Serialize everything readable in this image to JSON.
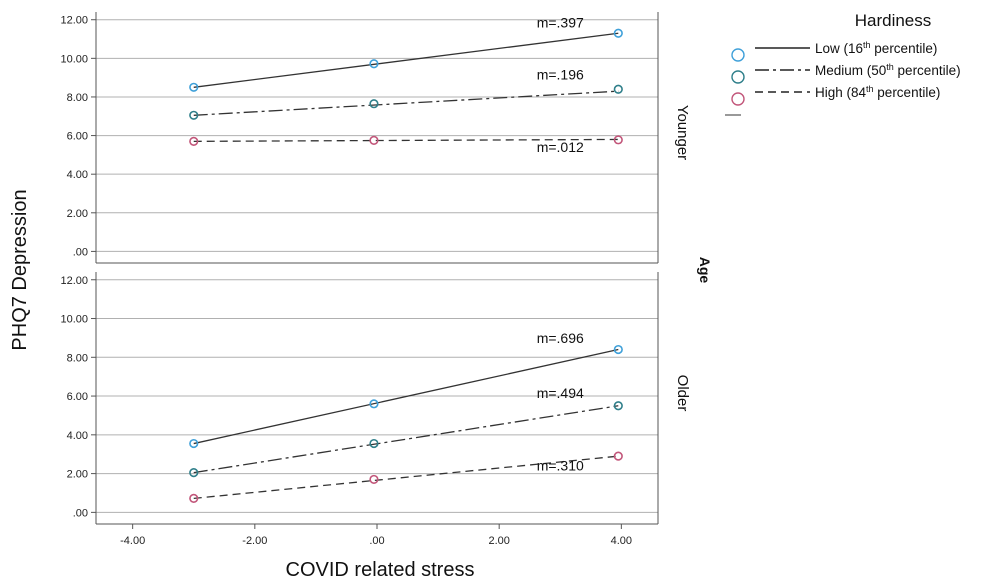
{
  "chart_data": {
    "type": "line",
    "x_axis_title": "COVID related stress",
    "y_axis_title": "PHQ7 Depression",
    "facet_title": "Age",
    "xlim": [
      -4.6,
      4.6
    ],
    "ylim": [
      -0.6,
      12.4
    ],
    "x_ticks": [
      -4,
      -2,
      0,
      2,
      4
    ],
    "x_tick_labels": [
      "-4.00",
      "-2.00",
      ".00",
      "2.00",
      "4.00"
    ],
    "y_ticks": [
      0,
      2,
      4,
      6,
      8,
      10,
      12
    ],
    "y_tick_labels": [
      ".00",
      "2.00",
      "4.00",
      "6.00",
      "8.00",
      "10.00",
      "12.00"
    ],
    "x": [
      -3.0,
      -0.05,
      3.95
    ],
    "legend": {
      "title": "Hardiness",
      "entries": [
        {
          "label": "Low (16",
          "sup": "th",
          "tail": " percentile)"
        },
        {
          "label": "Medium (50",
          "sup": "th",
          "tail": " percentile)"
        },
        {
          "label": "High (84",
          "sup": "th",
          "tail": " percentile)"
        }
      ]
    },
    "styles": [
      {
        "marker_color": "#3fa0d9",
        "dash": ""
      },
      {
        "marker_color": "#2f7f8a",
        "dash": "14 4 3 4"
      },
      {
        "marker_color": "#c2567a",
        "dash": "8 5"
      }
    ],
    "panels": [
      {
        "label": "Younger",
        "series": [
          {
            "points": [
              8.5,
              9.72,
              11.3
            ],
            "line": [
              8.5,
              11.3
            ],
            "slope_label": "m=.397",
            "slope_pos": [
              3.0,
              11.6
            ]
          },
          {
            "points": [
              7.05,
              7.65,
              8.4
            ],
            "line": [
              7.05,
              8.3
            ],
            "slope_label": "m=.196",
            "slope_pos": [
              3.0,
              8.9
            ]
          },
          {
            "points": [
              5.7,
              5.75,
              5.78
            ],
            "line": [
              5.7,
              5.8
            ],
            "slope_label": "m=.012",
            "slope_pos": [
              3.0,
              5.15
            ]
          }
        ]
      },
      {
        "label": "Older",
        "series": [
          {
            "points": [
              3.55,
              5.6,
              8.4
            ],
            "line": [
              3.55,
              8.4
            ],
            "slope_label": "m=.696",
            "slope_pos": [
              3.0,
              8.75
            ]
          },
          {
            "points": [
              2.05,
              3.55,
              5.5
            ],
            "line": [
              2.05,
              5.5
            ],
            "slope_label": "m=.494",
            "slope_pos": [
              3.0,
              5.9
            ]
          },
          {
            "points": [
              0.72,
              1.7,
              2.9
            ],
            "line": [
              0.72,
              2.9
            ],
            "slope_label": "m=.310",
            "slope_pos": [
              3.0,
              2.15
            ]
          }
        ]
      }
    ]
  }
}
